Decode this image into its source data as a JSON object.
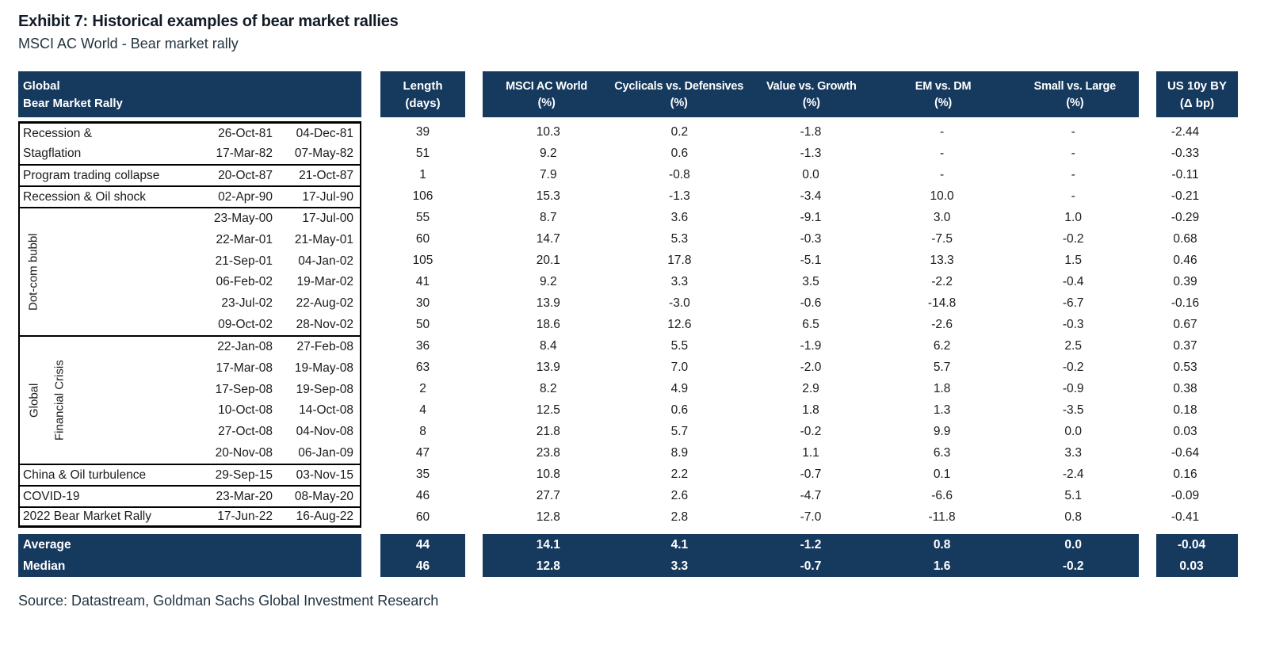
{
  "title": "Exhibit 7: Historical examples of bear market rallies",
  "subtitle": "MSCI AC World - Bear market rally",
  "source": "Source: Datastream, Goldman Sachs Global Investment Research",
  "colors": {
    "header_bg": "#16395e",
    "border": "#000000",
    "text": "#1b1b1b"
  },
  "header": {
    "left_line1": "Global",
    "left_line2": "Bear Market Rally",
    "length_line1": "Length",
    "length_line2": "(days)",
    "columns": [
      {
        "line1": "MSCI AC World",
        "line2": "(%)"
      },
      {
        "line1": "Cyclicals vs. Defensives",
        "line2": "(%)"
      },
      {
        "line1": "Value vs. Growth",
        "line2": "(%)"
      },
      {
        "line1": "EM vs. DM",
        "line2": "(%)"
      },
      {
        "line1": "Small vs. Large",
        "line2": "(%)"
      }
    ],
    "us_line1": "US 10y BY",
    "us_line2": "(Δ bp)"
  },
  "groups": [
    {
      "labels": [
        "Recession &",
        "Stagflation"
      ],
      "vertical_labels": [],
      "rows": [
        {
          "start": "26-Oct-81",
          "end": "04-Dec-81",
          "length": "39",
          "values": [
            "10.3",
            "0.2",
            "-1.8",
            "-",
            "-",
            "-2.44"
          ]
        },
        {
          "start": "17-Mar-82",
          "end": "07-May-82",
          "length": "51",
          "values": [
            "9.2",
            "0.6",
            "-1.3",
            "-",
            "-",
            "-0.33"
          ]
        }
      ]
    },
    {
      "labels": [
        "Program trading collapse"
      ],
      "vertical_labels": [],
      "rows": [
        {
          "start": "20-Oct-87",
          "end": "21-Oct-87",
          "length": "1",
          "values": [
            "7.9",
            "-0.8",
            "0.0",
            "-",
            "-",
            "-0.11"
          ]
        }
      ]
    },
    {
      "labels": [
        "Recession & Oil shock"
      ],
      "vertical_labels": [],
      "rows": [
        {
          "start": "02-Apr-90",
          "end": "17-Jul-90",
          "length": "106",
          "values": [
            "15.3",
            "-1.3",
            "-3.4",
            "10.0",
            "-",
            "-0.21"
          ]
        }
      ]
    },
    {
      "labels": [
        "",
        "",
        "",
        "",
        "",
        ""
      ],
      "vertical_labels": [
        "Dot-com bubbl"
      ],
      "rows": [
        {
          "start": "23-May-00",
          "end": "17-Jul-00",
          "length": "55",
          "values": [
            "8.7",
            "3.6",
            "-9.1",
            "3.0",
            "1.0",
            "-0.29"
          ]
        },
        {
          "start": "22-Mar-01",
          "end": "21-May-01",
          "length": "60",
          "values": [
            "14.7",
            "5.3",
            "-0.3",
            "-7.5",
            "-0.2",
            "0.68"
          ]
        },
        {
          "start": "21-Sep-01",
          "end": "04-Jan-02",
          "length": "105",
          "values": [
            "20.1",
            "17.8",
            "-5.1",
            "13.3",
            "1.5",
            "0.46"
          ]
        },
        {
          "start": "06-Feb-02",
          "end": "19-Mar-02",
          "length": "41",
          "values": [
            "9.2",
            "3.3",
            "3.5",
            "-2.2",
            "-0.4",
            "0.39"
          ]
        },
        {
          "start": "23-Jul-02",
          "end": "22-Aug-02",
          "length": "30",
          "values": [
            "13.9",
            "-3.0",
            "-0.6",
            "-14.8",
            "-6.7",
            "-0.16"
          ]
        },
        {
          "start": "09-Oct-02",
          "end": "28-Nov-02",
          "length": "50",
          "values": [
            "18.6",
            "12.6",
            "6.5",
            "-2.6",
            "-0.3",
            "0.67"
          ]
        }
      ]
    },
    {
      "labels": [
        "",
        "",
        "",
        "",
        "",
        ""
      ],
      "vertical_labels": [
        "Global",
        "Financial Crisis"
      ],
      "rows": [
        {
          "start": "22-Jan-08",
          "end": "27-Feb-08",
          "length": "36",
          "values": [
            "8.4",
            "5.5",
            "-1.9",
            "6.2",
            "2.5",
            "0.37"
          ]
        },
        {
          "start": "17-Mar-08",
          "end": "19-May-08",
          "length": "63",
          "values": [
            "13.9",
            "7.0",
            "-2.0",
            "5.7",
            "-0.2",
            "0.53"
          ]
        },
        {
          "start": "17-Sep-08",
          "end": "19-Sep-08",
          "length": "2",
          "values": [
            "8.2",
            "4.9",
            "2.9",
            "1.8",
            "-0.9",
            "0.38"
          ]
        },
        {
          "start": "10-Oct-08",
          "end": "14-Oct-08",
          "length": "4",
          "values": [
            "12.5",
            "0.6",
            "1.8",
            "1.3",
            "-3.5",
            "0.18"
          ]
        },
        {
          "start": "27-Oct-08",
          "end": "04-Nov-08",
          "length": "8",
          "values": [
            "21.8",
            "5.7",
            "-0.2",
            "9.9",
            "0.0",
            "0.03"
          ]
        },
        {
          "start": "20-Nov-08",
          "end": "06-Jan-09",
          "length": "47",
          "values": [
            "23.8",
            "8.9",
            "1.1",
            "6.3",
            "3.3",
            "-0.64"
          ]
        }
      ]
    },
    {
      "labels": [
        "China & Oil turbulence"
      ],
      "vertical_labels": [],
      "rows": [
        {
          "start": "29-Sep-15",
          "end": "03-Nov-15",
          "length": "35",
          "values": [
            "10.8",
            "2.2",
            "-0.7",
            "0.1",
            "-2.4",
            "0.16"
          ]
        }
      ]
    },
    {
      "labels": [
        "COVID-19"
      ],
      "vertical_labels": [],
      "rows": [
        {
          "start": "23-Mar-20",
          "end": "08-May-20",
          "length": "46",
          "values": [
            "27.7",
            "2.6",
            "-4.7",
            "-6.6",
            "5.1",
            "-0.09"
          ]
        }
      ]
    },
    {
      "labels": [
        "2022 Bear Market Rally"
      ],
      "vertical_labels": [],
      "rows": [
        {
          "start": "17-Jun-22",
          "end": "16-Aug-22",
          "length": "60",
          "values": [
            "12.8",
            "2.8",
            "-7.0",
            "-11.8",
            "0.8",
            "-0.41"
          ]
        }
      ]
    }
  ],
  "summary": [
    {
      "label": "Average",
      "length": "44",
      "values": [
        "14.1",
        "4.1",
        "-1.2",
        "0.8",
        "0.0",
        "-0.04"
      ]
    },
    {
      "label": "Median",
      "length": "46",
      "values": [
        "12.8",
        "3.3",
        "-0.7",
        "1.6",
        "-0.2",
        "0.03"
      ]
    }
  ]
}
